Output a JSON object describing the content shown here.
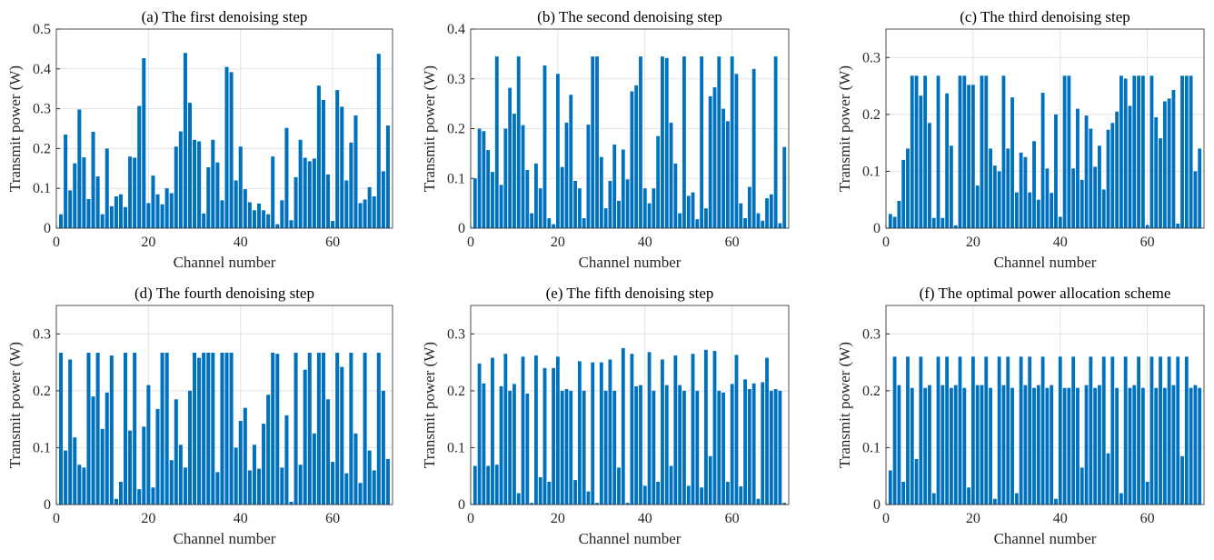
{
  "chart_data": [
    {
      "type": "bar",
      "title": "(a) The first denoising step",
      "x_label": "Channel number",
      "y_label": "Transmit power (W)",
      "color": "#0072bd",
      "grid": true,
      "xlim": [
        0,
        73
      ],
      "xticks": [
        0,
        20,
        40,
        60
      ],
      "ylim": [
        0,
        0.5
      ],
      "yticks": [
        0,
        0.1,
        0.2,
        0.3,
        0.4,
        0.5
      ],
      "x": [
        1,
        2,
        3,
        4,
        5,
        6,
        7,
        8,
        9,
        10,
        11,
        12,
        13,
        14,
        15,
        16,
        17,
        18,
        19,
        20,
        21,
        22,
        23,
        24,
        25,
        26,
        27,
        28,
        29,
        30,
        31,
        32,
        33,
        34,
        35,
        36,
        37,
        38,
        39,
        40,
        41,
        42,
        43,
        44,
        45,
        46,
        47,
        48,
        49,
        50,
        51,
        52,
        53,
        54,
        55,
        56,
        57,
        58,
        59,
        60,
        61,
        62,
        63,
        64,
        65,
        66,
        67,
        68,
        69,
        70,
        71,
        72
      ],
      "values": [
        0.035,
        0.235,
        0.095,
        0.163,
        0.298,
        0.178,
        0.073,
        0.242,
        0.13,
        0.035,
        0.2,
        0.055,
        0.08,
        0.085,
        0.053,
        0.18,
        0.177,
        0.307,
        0.427,
        0.063,
        0.132,
        0.085,
        0.06,
        0.1,
        0.088,
        0.205,
        0.243,
        0.44,
        0.315,
        0.222,
        0.218,
        0.037,
        0.153,
        0.222,
        0.165,
        0.07,
        0.405,
        0.392,
        0.12,
        0.205,
        0.098,
        0.065,
        0.045,
        0.062,
        0.045,
        0.035,
        0.18,
        0.01,
        0.07,
        0.252,
        0.02,
        0.128,
        0.222,
        0.177,
        0.168,
        0.175,
        0.358,
        0.322,
        0.135,
        0.018,
        0.347,
        0.305,
        0.12,
        0.215,
        0.283,
        0.063,
        0.072,
        0.103,
        0.08,
        0.438,
        0.143,
        0.258
      ]
    },
    {
      "type": "bar",
      "title": "(b) The second denoising step",
      "x_label": "Channel number",
      "y_label": "Transmit power (W)",
      "color": "#0072bd",
      "grid": true,
      "xlim": [
        0,
        73
      ],
      "xticks": [
        0,
        20,
        40,
        60
      ],
      "ylim": [
        0,
        0.4
      ],
      "yticks": [
        0,
        0.1,
        0.2,
        0.3,
        0.4
      ],
      "x": [
        1,
        2,
        3,
        4,
        5,
        6,
        7,
        8,
        9,
        10,
        11,
        12,
        13,
        14,
        15,
        16,
        17,
        18,
        19,
        20,
        21,
        22,
        23,
        24,
        25,
        26,
        27,
        28,
        29,
        30,
        31,
        32,
        33,
        34,
        35,
        36,
        37,
        38,
        39,
        40,
        41,
        42,
        43,
        44,
        45,
        46,
        47,
        48,
        49,
        50,
        51,
        52,
        53,
        54,
        55,
        56,
        57,
        58,
        59,
        60,
        61,
        62,
        63,
        64,
        65,
        66,
        67,
        68,
        69,
        70,
        71,
        72
      ],
      "values": [
        0.1,
        0.2,
        0.195,
        0.157,
        0.113,
        0.345,
        0.087,
        0.2,
        0.282,
        0.23,
        0.345,
        0.207,
        0.117,
        0.03,
        0.13,
        0.08,
        0.327,
        0.02,
        0.008,
        0.31,
        0.123,
        0.212,
        0.268,
        0.095,
        0.08,
        0.02,
        0.208,
        0.345,
        0.345,
        0.143,
        0.04,
        0.095,
        0.168,
        0.055,
        0.158,
        0.098,
        0.275,
        0.287,
        0.345,
        0.08,
        0.05,
        0.08,
        0.185,
        0.345,
        0.342,
        0.212,
        0.13,
        0.03,
        0.345,
        0.065,
        0.072,
        0.018,
        0.345,
        0.04,
        0.265,
        0.283,
        0.345,
        0.24,
        0.215,
        0.345,
        0.31,
        0.05,
        0.02,
        0.083,
        0.32,
        0.03,
        0.015,
        0.06,
        0.068,
        0.345,
        0.01,
        0.163
      ]
    },
    {
      "type": "bar",
      "title": "(c) The third denoising step",
      "x_label": "Channel number",
      "y_label": "Transmit power (W)",
      "color": "#0072bd",
      "grid": true,
      "xlim": [
        0,
        73
      ],
      "xticks": [
        0,
        20,
        40,
        60
      ],
      "ylim": [
        0,
        0.35
      ],
      "yticks": [
        0,
        0.1,
        0.2,
        0.3
      ],
      "x": [
        1,
        2,
        3,
        4,
        5,
        6,
        7,
        8,
        9,
        10,
        11,
        12,
        13,
        14,
        15,
        16,
        17,
        18,
        19,
        20,
        21,
        22,
        23,
        24,
        25,
        26,
        27,
        28,
        29,
        30,
        31,
        32,
        33,
        34,
        35,
        36,
        37,
        38,
        39,
        40,
        41,
        42,
        43,
        44,
        45,
        46,
        47,
        48,
        49,
        50,
        51,
        52,
        53,
        54,
        55,
        56,
        57,
        58,
        59,
        60,
        61,
        62,
        63,
        64,
        65,
        66,
        67,
        68,
        69,
        70,
        71,
        72
      ],
      "values": [
        0.025,
        0.02,
        0.048,
        0.12,
        0.14,
        0.268,
        0.268,
        0.233,
        0.268,
        0.185,
        0.018,
        0.268,
        0.018,
        0.237,
        0.145,
        0.005,
        0.268,
        0.268,
        0.252,
        0.252,
        0.075,
        0.268,
        0.268,
        0.14,
        0.11,
        0.1,
        0.268,
        0.14,
        0.23,
        0.063,
        0.133,
        0.125,
        0.063,
        0.153,
        0.05,
        0.238,
        0.105,
        0.062,
        0.2,
        0.02,
        0.268,
        0.268,
        0.105,
        0.21,
        0.085,
        0.198,
        0.175,
        0.108,
        0.145,
        0.068,
        0.173,
        0.185,
        0.205,
        0.268,
        0.263,
        0.215,
        0.268,
        0.268,
        0.268,
        0.005,
        0.268,
        0.195,
        0.158,
        0.223,
        0.228,
        0.243,
        0.008,
        0.268,
        0.268,
        0.268,
        0.1,
        0.14
      ]
    },
    {
      "type": "bar",
      "title": "(d) The fourth denoising step",
      "x_label": "Channel number",
      "y_label": "Transmit power (W)",
      "color": "#0072bd",
      "grid": true,
      "xlim": [
        0,
        73
      ],
      "xticks": [
        0,
        20,
        40,
        60
      ],
      "ylim": [
        0,
        0.35
      ],
      "yticks": [
        0,
        0.1,
        0.2,
        0.3
      ],
      "x": [
        1,
        2,
        3,
        4,
        5,
        6,
        7,
        8,
        9,
        10,
        11,
        12,
        13,
        14,
        15,
        16,
        17,
        18,
        19,
        20,
        21,
        22,
        23,
        24,
        25,
        26,
        27,
        28,
        29,
        30,
        31,
        32,
        33,
        34,
        35,
        36,
        37,
        38,
        39,
        40,
        41,
        42,
        43,
        44,
        45,
        46,
        47,
        48,
        49,
        50,
        51,
        52,
        53,
        54,
        55,
        56,
        57,
        58,
        59,
        60,
        61,
        62,
        63,
        64,
        65,
        66,
        67,
        68,
        69,
        70,
        71,
        72
      ],
      "values": [
        0.267,
        0.095,
        0.255,
        0.118,
        0.07,
        0.065,
        0.267,
        0.19,
        0.267,
        0.133,
        0.197,
        0.262,
        0.01,
        0.04,
        0.267,
        0.13,
        0.267,
        0.027,
        0.137,
        0.21,
        0.03,
        0.168,
        0.267,
        0.267,
        0.078,
        0.185,
        0.105,
        0.065,
        0.2,
        0.267,
        0.258,
        0.267,
        0.267,
        0.267,
        0.057,
        0.267,
        0.267,
        0.267,
        0.1,
        0.147,
        0.17,
        0.06,
        0.105,
        0.063,
        0.142,
        0.193,
        0.267,
        0.265,
        0.065,
        0.157,
        0.005,
        0.267,
        0.07,
        0.237,
        0.267,
        0.125,
        0.267,
        0.267,
        0.185,
        0.075,
        0.267,
        0.242,
        0.055,
        0.267,
        0.125,
        0.038,
        0.267,
        0.095,
        0.06,
        0.267,
        0.2,
        0.08
      ]
    },
    {
      "type": "bar",
      "title": "(e) The fifth denoising step",
      "x_label": "Channel number",
      "y_label": "Transmit power (W)",
      "color": "#0072bd",
      "grid": true,
      "xlim": [
        0,
        73
      ],
      "xticks": [
        0,
        20,
        40,
        60
      ],
      "ylim": [
        0,
        0.35
      ],
      "yticks": [
        0,
        0.1,
        0.2,
        0.3
      ],
      "x": [
        1,
        2,
        3,
        4,
        5,
        6,
        7,
        8,
        9,
        10,
        11,
        12,
        13,
        14,
        15,
        16,
        17,
        18,
        19,
        20,
        21,
        22,
        23,
        24,
        25,
        26,
        27,
        28,
        29,
        30,
        31,
        32,
        33,
        34,
        35,
        36,
        37,
        38,
        39,
        40,
        41,
        42,
        43,
        44,
        45,
        46,
        47,
        48,
        49,
        50,
        51,
        52,
        53,
        54,
        55,
        56,
        57,
        58,
        59,
        60,
        61,
        62,
        63,
        64,
        65,
        66,
        67,
        68,
        69,
        70,
        71,
        72
      ],
      "values": [
        0.068,
        0.248,
        0.213,
        0.068,
        0.258,
        0.07,
        0.208,
        0.265,
        0.2,
        0.212,
        0.02,
        0.26,
        0.195,
        0.003,
        0.262,
        0.048,
        0.24,
        0.04,
        0.24,
        0.26,
        0.2,
        0.203,
        0.2,
        0.043,
        0.252,
        0.2,
        0.023,
        0.25,
        0.003,
        0.25,
        0.2,
        0.255,
        0.2,
        0.065,
        0.275,
        0.003,
        0.265,
        0.208,
        0.21,
        0.033,
        0.268,
        0.2,
        0.04,
        0.255,
        0.21,
        0.068,
        0.262,
        0.21,
        0.2,
        0.033,
        0.265,
        0.2,
        0.03,
        0.272,
        0.085,
        0.27,
        0.2,
        0.197,
        0.04,
        0.212,
        0.263,
        0.032,
        0.22,
        0.203,
        0.213,
        0.01,
        0.215,
        0.258,
        0.2,
        0.203,
        0.2,
        0.003
      ]
    },
    {
      "type": "bar",
      "title": "(f) The optimal power allocation scheme",
      "x_label": "Channel number",
      "y_label": "Transmit power (W)",
      "color": "#0072bd",
      "grid": true,
      "xlim": [
        0,
        73
      ],
      "xticks": [
        0,
        20,
        40,
        60
      ],
      "ylim": [
        0,
        0.35
      ],
      "yticks": [
        0,
        0.1,
        0.2,
        0.3
      ],
      "x": [
        1,
        2,
        3,
        4,
        5,
        6,
        7,
        8,
        9,
        10,
        11,
        12,
        13,
        14,
        15,
        16,
        17,
        18,
        19,
        20,
        21,
        22,
        23,
        24,
        25,
        26,
        27,
        28,
        29,
        30,
        31,
        32,
        33,
        34,
        35,
        36,
        37,
        38,
        39,
        40,
        41,
        42,
        43,
        44,
        45,
        46,
        47,
        48,
        49,
        50,
        51,
        52,
        53,
        54,
        55,
        56,
        57,
        58,
        59,
        60,
        61,
        62,
        63,
        64,
        65,
        66,
        67,
        68,
        69,
        70,
        71,
        72
      ],
      "values": [
        0.06,
        0.26,
        0.21,
        0.04,
        0.26,
        0.205,
        0.08,
        0.26,
        0.205,
        0.21,
        0.02,
        0.26,
        0.21,
        0.26,
        0.205,
        0.21,
        0.26,
        0.205,
        0.03,
        0.26,
        0.21,
        0.21,
        0.26,
        0.205,
        0.01,
        0.26,
        0.21,
        0.26,
        0.205,
        0.02,
        0.26,
        0.21,
        0.26,
        0.205,
        0.21,
        0.26,
        0.205,
        0.21,
        0.01,
        0.26,
        0.205,
        0.205,
        0.26,
        0.205,
        0.065,
        0.21,
        0.26,
        0.205,
        0.21,
        0.26,
        0.09,
        0.26,
        0.205,
        0.02,
        0.26,
        0.205,
        0.21,
        0.26,
        0.205,
        0.04,
        0.26,
        0.205,
        0.26,
        0.205,
        0.26,
        0.21,
        0.26,
        0.085,
        0.26,
        0.205,
        0.21,
        0.205
      ]
    }
  ]
}
